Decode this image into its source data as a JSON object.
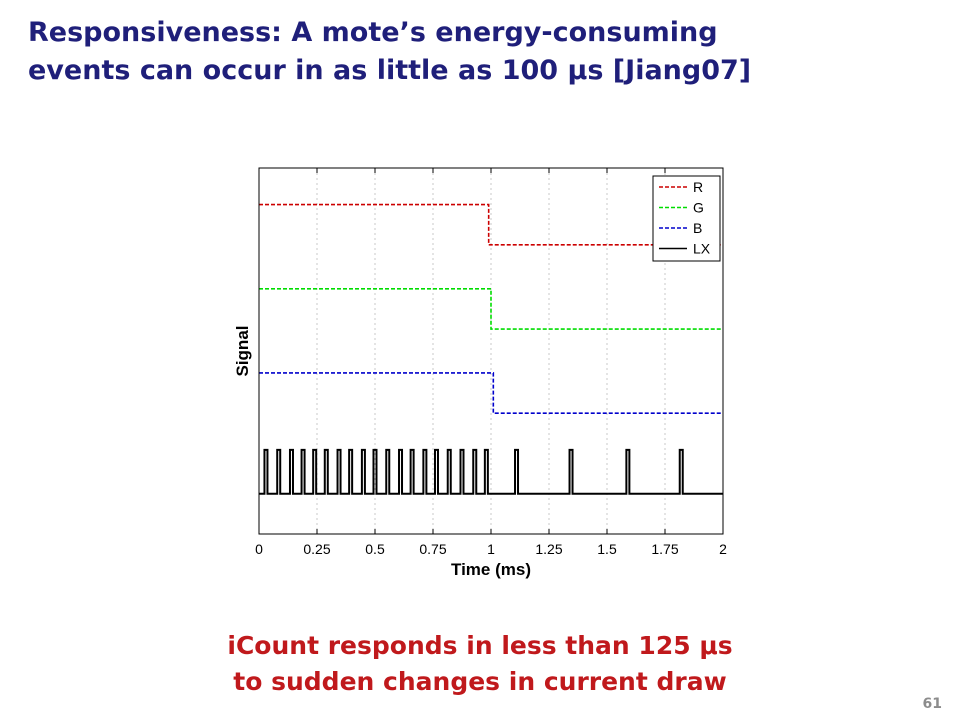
{
  "slide": {
    "title_line1": "Responsiveness: A mote’s energy-consuming",
    "title_line2": "events can occur in as little as 100 μs [Jiang07]",
    "caption_line1": "iCount responds in less than 125 μs",
    "caption_line2": "to sudden changes in current draw",
    "page_number": "61"
  },
  "chart_data": {
    "type": "line",
    "title": "",
    "xlabel": "Time (ms)",
    "ylabel": "Signal",
    "xlim": [
      0,
      2
    ],
    "ylim": [
      0,
      1
    ],
    "xticks": [
      0,
      0.25,
      0.5,
      0.75,
      1,
      1.25,
      1.5,
      1.75,
      2
    ],
    "xtick_labels": [
      "0",
      "0.25",
      "0.5",
      "0.75",
      "1",
      "1.25",
      "1.5",
      "1.75",
      "2"
    ],
    "grid": true,
    "legend": "top-right",
    "series": [
      {
        "name": "R",
        "color": "#cc0000",
        "style": "dashed",
        "x": [
          0,
          0.99,
          0.99,
          2
        ],
        "y": [
          0.9,
          0.9,
          0.79,
          0.79
        ]
      },
      {
        "name": "G",
        "color": "#00dd00",
        "style": "dashed",
        "x": [
          0,
          1.0,
          1.0,
          2
        ],
        "y": [
          0.67,
          0.67,
          0.56,
          0.56
        ]
      },
      {
        "name": "B",
        "color": "#0000cc",
        "style": "dashed",
        "x": [
          0,
          1.01,
          1.01,
          2
        ],
        "y": [
          0.44,
          0.44,
          0.33,
          0.33
        ]
      },
      {
        "name": "LX",
        "color": "#000000",
        "style": "solid",
        "baseline": 0.11,
        "pulse_height": 0.12,
        "pulses": [
          0.03,
          0.085,
          0.14,
          0.19,
          0.24,
          0.29,
          0.345,
          0.395,
          0.45,
          0.5,
          0.555,
          0.61,
          0.66,
          0.715,
          0.765,
          0.82,
          0.875,
          0.93,
          0.98,
          1.11,
          1.345,
          1.59,
          1.82
        ]
      }
    ]
  }
}
